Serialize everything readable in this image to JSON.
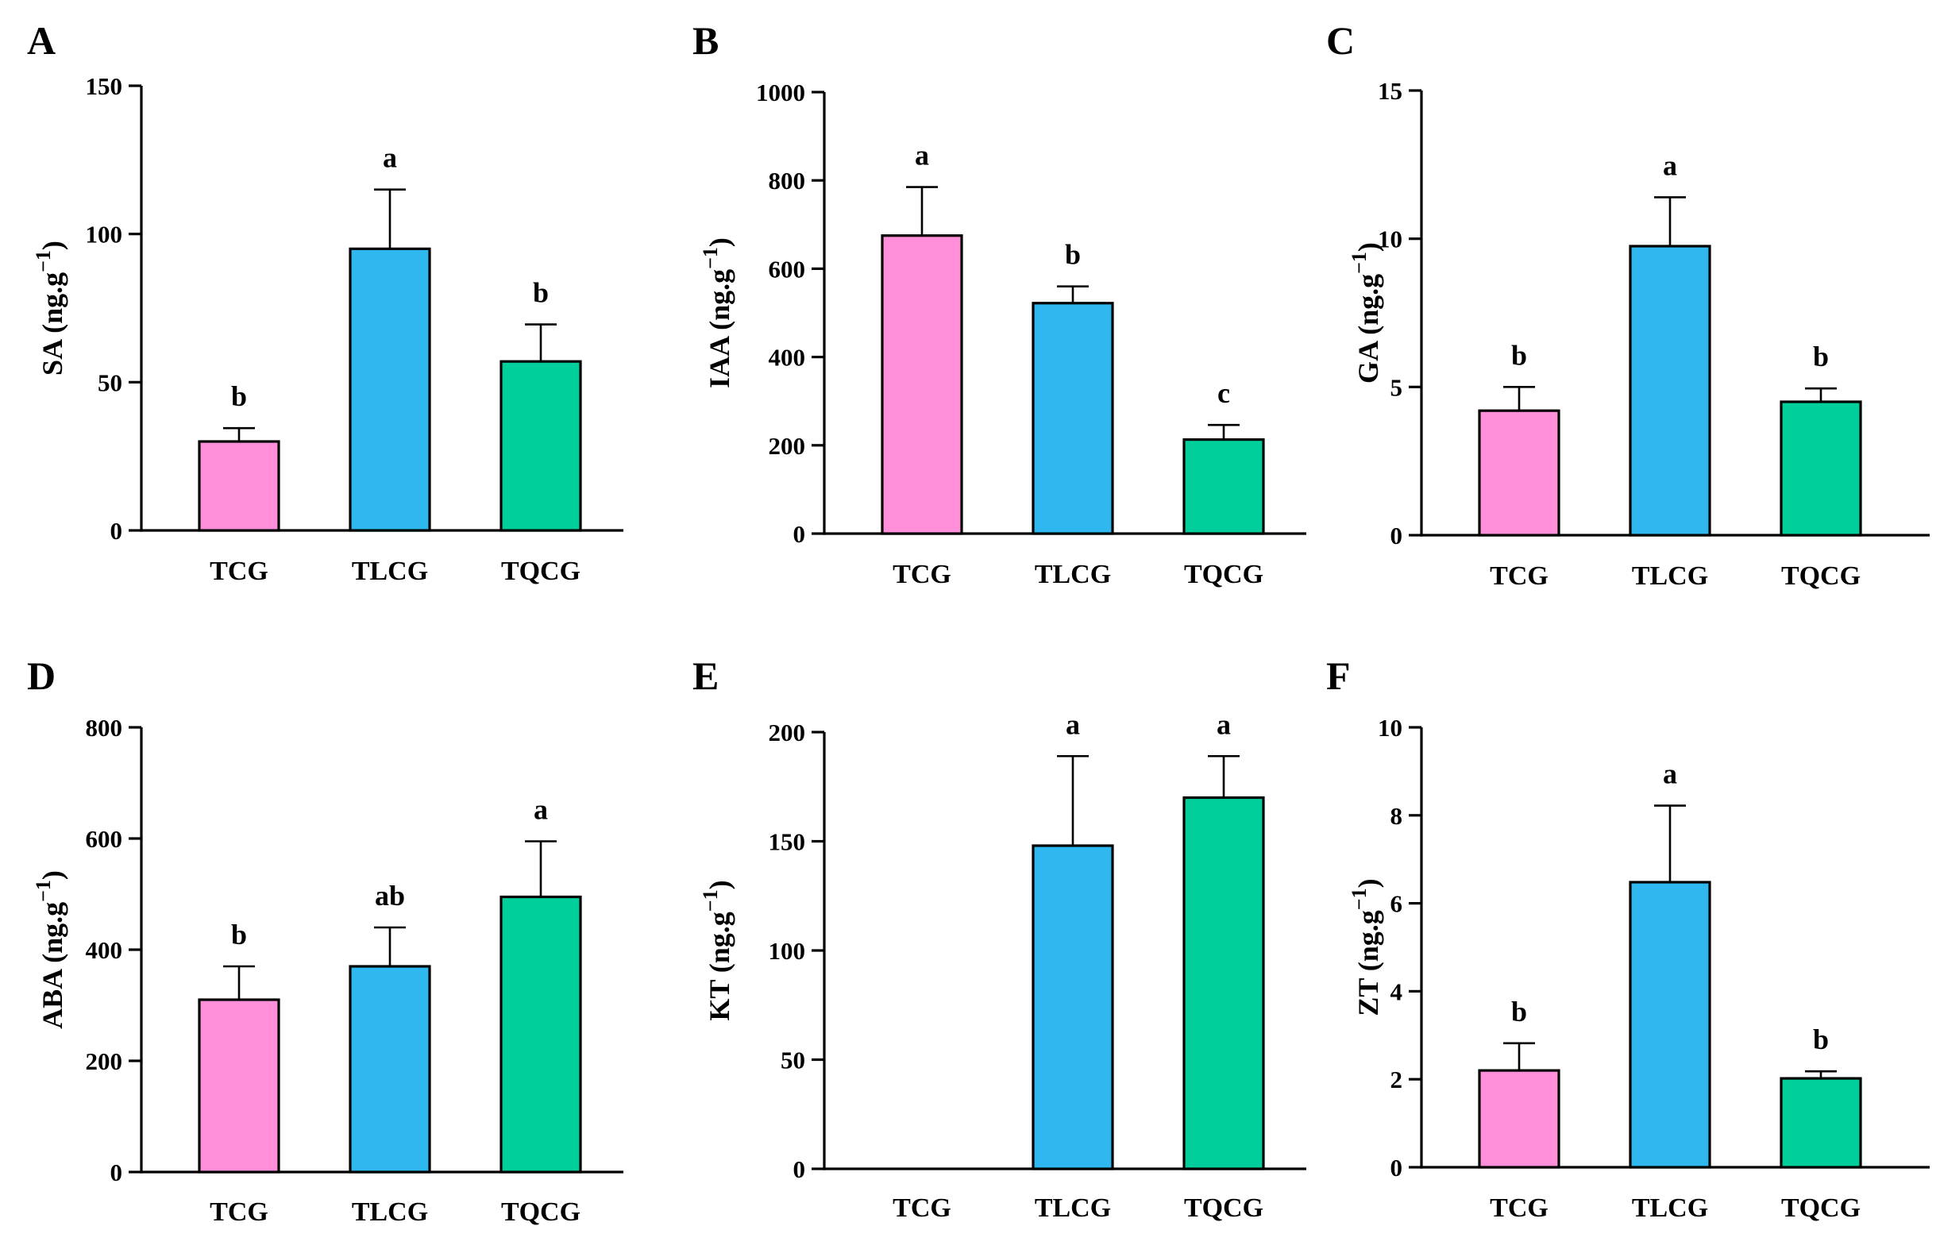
{
  "colors": {
    "TCG": "#ff8fd8",
    "TLCG": "#2fb8f0",
    "TQCG": "#00cf9c"
  },
  "chart_data": [
    {
      "panel": "A",
      "type": "bar",
      "categories": [
        "TCG",
        "TLCG",
        "TQCG"
      ],
      "values": [
        30,
        95,
        57
      ],
      "errors": [
        4.5,
        20,
        12.5
      ],
      "significance": [
        "b",
        "a",
        "b"
      ],
      "ylabel_main": "SA (ng.g",
      "ylabel_sup": "−1",
      "ylabel_end": ")",
      "ylim": [
        0,
        150
      ],
      "ticks": [
        0,
        50,
        100,
        150
      ]
    },
    {
      "panel": "B",
      "type": "bar",
      "categories": [
        "TCG",
        "TLCG",
        "TQCG"
      ],
      "values": [
        675,
        522,
        213
      ],
      "errors": [
        110,
        38,
        33
      ],
      "significance": [
        "a",
        "b",
        "c"
      ],
      "ylabel_main": "IAA (ng.g",
      "ylabel_sup": "−1",
      "ylabel_end": ")",
      "ylim": [
        0,
        1000
      ],
      "ticks": [
        0,
        200,
        400,
        600,
        800,
        1000
      ]
    },
    {
      "panel": "C",
      "type": "bar",
      "categories": [
        "TCG",
        "TLCG",
        "TQCG"
      ],
      "values": [
        4.2,
        9.75,
        4.5
      ],
      "errors": [
        0.8,
        1.65,
        0.45
      ],
      "significance": [
        "b",
        "a",
        "b"
      ],
      "ylabel_main": "GA (ng.g",
      "ylabel_sup": "−1",
      "ylabel_end": ")",
      "ylim": [
        0,
        15
      ],
      "ticks": [
        0,
        5,
        10,
        15
      ]
    },
    {
      "panel": "D",
      "type": "bar",
      "categories": [
        "TCG",
        "TLCG",
        "TQCG"
      ],
      "values": [
        310,
        370,
        495
      ],
      "errors": [
        60,
        70,
        100
      ],
      "significance": [
        "b",
        "ab",
        "a"
      ],
      "ylabel_main": "ABA (ng.g",
      "ylabel_sup": "−1",
      "ylabel_end": ")",
      "ylim": [
        0,
        800
      ],
      "ticks": [
        0,
        200,
        400,
        600,
        800
      ]
    },
    {
      "panel": "E",
      "type": "bar",
      "categories": [
        "TCG",
        "TLCG",
        "TQCG"
      ],
      "values": [
        0,
        148,
        170
      ],
      "errors": [
        0,
        41,
        19
      ],
      "significance": [
        "",
        "a",
        "a"
      ],
      "ylabel_main": "KT (ng.g",
      "ylabel_sup": "−1",
      "ylabel_end": ")",
      "ylim": [
        0,
        200
      ],
      "ticks": [
        0,
        50,
        100,
        150,
        200
      ]
    },
    {
      "panel": "F",
      "type": "bar",
      "categories": [
        "TCG",
        "TLCG",
        "TQCG"
      ],
      "values": [
        2.2,
        6.48,
        2.02
      ],
      "errors": [
        0.62,
        1.74,
        0.16
      ],
      "significance": [
        "b",
        "a",
        "b"
      ],
      "ylabel_main": "ZT (ng.g",
      "ylabel_sup": "−1",
      "ylabel_end": ")",
      "ylim": [
        0,
        10
      ],
      "ticks": [
        0,
        2,
        4,
        6,
        8,
        10
      ]
    }
  ]
}
